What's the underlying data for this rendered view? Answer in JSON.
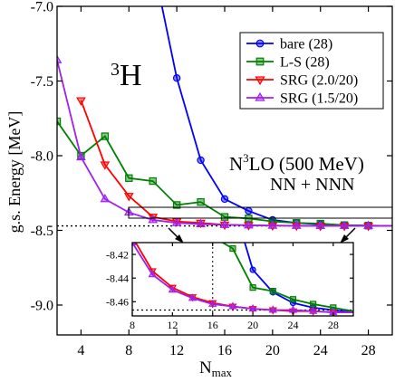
{
  "chart_data": [
    {
      "type": "line",
      "xlabel": "N",
      "xlabel_sub": "max",
      "ylabel": "g.s. Energy  [MeV]",
      "xlim": [
        2,
        30
      ],
      "ylim": [
        -9.2,
        -7.0
      ],
      "xticks": [
        4,
        8,
        12,
        16,
        20,
        24,
        28
      ],
      "yticks": [
        -9.0,
        -8.5,
        -8.0,
        -7.5,
        -7.0
      ],
      "xtick_labels": [
        "4",
        "8",
        "12",
        "16",
        "20",
        "24",
        "28"
      ],
      "ytick_labels": [
        "-9.0",
        "-8.5",
        "-8.0",
        "-7.5",
        "-7.0"
      ],
      "reference_line": -8.47,
      "legend_position": "top-right",
      "annotations": {
        "nucleus": "H",
        "nucleus_mass": "3",
        "interaction_prefix": "N",
        "interaction_sup": "3",
        "interaction_suffix": "LO (500 MeV)",
        "force": "NN + NNN"
      },
      "x": [
        2,
        4,
        6,
        8,
        10,
        12,
        14,
        16,
        18,
        20,
        22,
        24,
        26,
        28,
        30
      ],
      "series": [
        {
          "name": "bare (28)",
          "color": "#0000ff",
          "marker": "circle",
          "values": [
            null,
            null,
            null,
            null,
            null,
            -7.48,
            -8.03,
            -8.29,
            -8.37,
            -8.43,
            -8.45,
            -8.46,
            -8.465,
            -8.468,
            -8.47
          ]
        },
        {
          "name": "L-S (28)",
          "color": "#008000",
          "marker": "square",
          "values": [
            -7.77,
            -8.0,
            -7.87,
            -8.15,
            -8.17,
            -8.33,
            -8.31,
            -8.41,
            -8.42,
            -8.44,
            -8.45,
            -8.455,
            -8.465,
            -8.468,
            -8.47
          ]
        },
        {
          "name": "SRG (2.0/20)",
          "color": "#ff0000",
          "marker": "triangle-down",
          "values": [
            null,
            -7.63,
            -8.06,
            -8.27,
            -8.41,
            -8.44,
            -8.45,
            -8.462,
            -8.466,
            -8.468,
            -8.469,
            -8.47,
            -8.47,
            -8.47,
            -8.47
          ]
        },
        {
          "name": "SRG (1.5/20)",
          "color": "#a020f0",
          "marker": "triangle-up",
          "values": [
            -7.36,
            -8.01,
            -8.29,
            -8.38,
            -8.43,
            -8.45,
            -8.458,
            -8.463,
            -8.466,
            -8.468,
            -8.469,
            -8.47,
            -8.47,
            -8.47,
            -8.47
          ]
        }
      ]
    },
    {
      "type": "line",
      "inset": true,
      "xlim": [
        8,
        30
      ],
      "ylim": [
        -8.472,
        -8.41
      ],
      "xticks": [
        8,
        12,
        16,
        20,
        24,
        28
      ],
      "yticks": [
        -8.42,
        -8.44,
        -8.46
      ],
      "xtick_labels": [
        "8",
        "12",
        "16",
        "20",
        "24",
        "28"
      ],
      "ytick_labels": [
        "-8.42",
        "-8.44",
        "-8.46"
      ],
      "reference_line": -8.467,
      "x": [
        8,
        10,
        12,
        14,
        16,
        18,
        20,
        22,
        24,
        26,
        28,
        30
      ],
      "series": [
        {
          "name": "bare (28)",
          "color": "#0000ff",
          "marker": "circle",
          "values": [
            null,
            null,
            null,
            null,
            null,
            -8.376,
            -8.433,
            -8.452,
            -8.461,
            -8.465,
            -8.467,
            -8.469
          ]
        },
        {
          "name": "L-S (28)",
          "color": "#008000",
          "marker": "square",
          "values": [
            null,
            null,
            null,
            null,
            -8.405,
            -8.415,
            -8.448,
            -8.451,
            -8.458,
            -8.462,
            -8.465,
            -8.468
          ]
        },
        {
          "name": "SRG (2.0/20)",
          "color": "#ff0000",
          "marker": "triangle-down",
          "values": [
            -8.405,
            -8.434,
            -8.448,
            -8.456,
            -8.461,
            -8.464,
            -8.466,
            -8.467,
            -8.468,
            -8.468,
            -8.469,
            -8.469
          ]
        },
        {
          "name": "SRG (1.5/20)",
          "color": "#a020f0",
          "marker": "triangle-up",
          "values": [
            -8.41,
            -8.437,
            -8.45,
            -8.457,
            -8.462,
            -8.464,
            -8.466,
            -8.467,
            -8.467,
            -8.468,
            -8.469,
            -8.469
          ]
        }
      ]
    }
  ]
}
